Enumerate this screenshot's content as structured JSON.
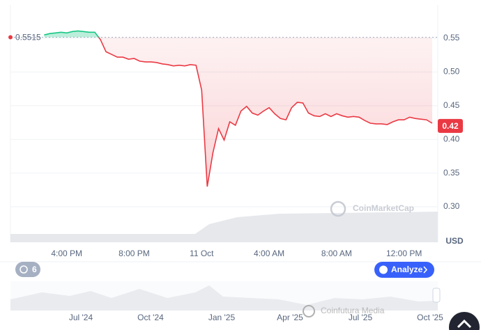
{
  "chart_data": {
    "type": "line",
    "categories": [
      null,
      null,
      null,
      null,
      null,
      null,
      null,
      null,
      null,
      null,
      "4:00 PM",
      null,
      null,
      null,
      null,
      null,
      null,
      null,
      null,
      null,
      null,
      null,
      "8:00 PM",
      null,
      null,
      null,
      null,
      null,
      null,
      null,
      null,
      null,
      null,
      null,
      "11 Oct",
      null,
      null,
      null,
      null,
      null,
      null,
      null,
      null,
      null,
      null,
      null,
      "4:00 AM",
      null,
      null,
      null,
      null,
      null,
      null,
      null,
      null,
      null,
      null,
      null,
      "8:00 AM",
      null,
      null,
      null,
      null,
      null,
      null,
      null,
      null,
      null,
      null,
      null,
      "12:00 PM",
      null,
      null,
      null,
      null,
      null
    ],
    "series": [
      {
        "color": "#ea3943",
        "up_color": "#16c784",
        "values": [
          null,
          null,
          null,
          null,
          null,
          null,
          0.555,
          0.557,
          0.558,
          0.559,
          0.558,
          0.56,
          0.561,
          0.56,
          0.559,
          0.559,
          0.548,
          0.53,
          0.526,
          0.522,
          0.522,
          0.519,
          0.52,
          0.516,
          0.515,
          0.515,
          0.514,
          0.512,
          0.511,
          0.509,
          0.51,
          0.509,
          0.511,
          0.51,
          0.473,
          0.33,
          0.38,
          0.416,
          0.399,
          0.426,
          0.421,
          0.442,
          0.449,
          0.439,
          0.436,
          0.442,
          0.447,
          0.438,
          0.431,
          0.429,
          0.447,
          0.455,
          0.454,
          0.439,
          0.435,
          0.434,
          0.438,
          0.434,
          0.438,
          0.435,
          0.433,
          0.434,
          0.433,
          0.428,
          0.424,
          0.423,
          0.423,
          0.422,
          0.426,
          0.429,
          0.429,
          0.433,
          0.431,
          0.43,
          0.429,
          0.424
        ]
      }
    ],
    "baseline": 0.5515,
    "last_price": 0.42,
    "unit": "USD",
    "ylim": [
      0.25,
      0.6
    ],
    "yticks": [
      0.55,
      {
        "value": 0.5,
        "label": "0.50"
      },
      0.45,
      {
        "value": 0.4,
        "label": "0.40"
      },
      0.35,
      {
        "value": 0.3,
        "label": "0.30"
      }
    ],
    "grid": true,
    "logo": "CoinMarketCap",
    "badge": "6",
    "button": "Analyze",
    "navigator_labels": [
      "Jul '24",
      "Oct '24",
      "Jan '25",
      "Apr '25",
      "Jul '25",
      "Oct '25"
    ],
    "watermark": "Coinfutura Media"
  }
}
